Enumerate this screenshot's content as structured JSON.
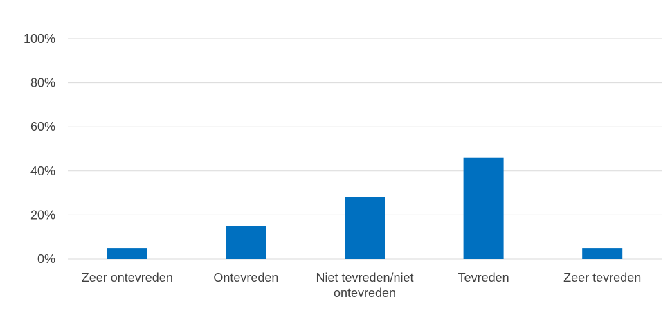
{
  "chart_data": {
    "type": "bar",
    "categories": [
      [
        "Zeer ontevreden"
      ],
      [
        "Ontevreden"
      ],
      [
        "Niet tevreden/niet",
        "ontevreden"
      ],
      [
        "Tevreden"
      ],
      [
        "Zeer tevreden"
      ]
    ],
    "values": [
      5,
      15,
      28,
      46,
      5
    ],
    "ylim": [
      0,
      100
    ],
    "yticks": [
      "0%",
      "20%",
      "40%",
      "60%",
      "80%",
      "100%"
    ],
    "grid": true,
    "bar_color": "#0070C0",
    "title": "",
    "xlabel": "",
    "ylabel": ""
  }
}
